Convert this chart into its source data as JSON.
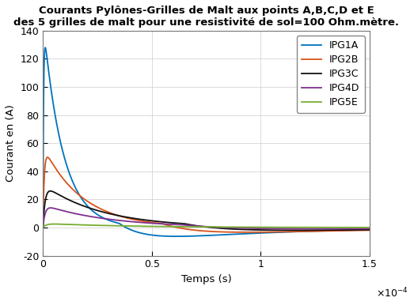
{
  "title_line1": "Courants Pylônes-Grilles de Malt aux points A,B,C,D et E",
  "title_line2": "des 5 grilles de malt pour une resistivité de sol=100 Ohm.mètre.",
  "xlabel": "Temps (s)",
  "ylabel": "Courant en (A)",
  "xlim": [
    0,
    0.00015
  ],
  "ylim": [
    -20,
    140
  ],
  "yticks": [
    -20,
    0,
    20,
    40,
    60,
    80,
    100,
    120,
    140
  ],
  "xticks": [
    0,
    5e-05,
    0.0001,
    0.00015
  ],
  "xticklabels": [
    "0",
    "0.5",
    "1",
    "1.5"
  ],
  "series": [
    {
      "label": "IPG1A",
      "color": "#0072BD",
      "peak": 128.0,
      "t_peak": 5.5e-06,
      "tau_rise": 3e-07,
      "tau_fall": 9e-06,
      "neg_amp": -13.0,
      "neg_tau": 5.5e-05,
      "neg_t0": 3.5e-05
    },
    {
      "label": "IPG2B",
      "color": "#D95319",
      "peak": 50.0,
      "t_peak": 1e-05,
      "tau_rise": 6e-07,
      "tau_fall": 1.8e-05,
      "neg_amp": -7.5,
      "neg_tau": 7e-05,
      "neg_t0": 5.5e-05
    },
    {
      "label": "IPG3C",
      "color": "#111111",
      "peak": 26.0,
      "t_peak": 1.55e-05,
      "tau_rise": 1e-06,
      "tau_fall": 2.7e-05,
      "neg_amp": -5.0,
      "neg_tau": 8e-05,
      "neg_t0": 6.5e-05
    },
    {
      "label": "IPG4D",
      "color": "#7E2F8E",
      "peak": 14.0,
      "t_peak": 1.55e-05,
      "tau_rise": 1e-06,
      "tau_fall": 3e-05,
      "neg_amp": -2.5,
      "neg_tau": 9e-05,
      "neg_t0": 6.5e-05
    },
    {
      "label": "IPG5E",
      "color": "#77AC30",
      "peak": 2.5,
      "t_peak": 2e-05,
      "tau_rise": 1.5e-06,
      "tau_fall": 4e-05,
      "neg_amp": 0.0,
      "neg_tau": 0.0001,
      "neg_t0": 8e-05
    }
  ],
  "legend_loc": "upper right",
  "background_color": "#FFFFFF",
  "title_fontsize": 9.5,
  "axis_label_fontsize": 9.5,
  "tick_fontsize": 9,
  "legend_fontsize": 9,
  "linewidth": 1.3
}
